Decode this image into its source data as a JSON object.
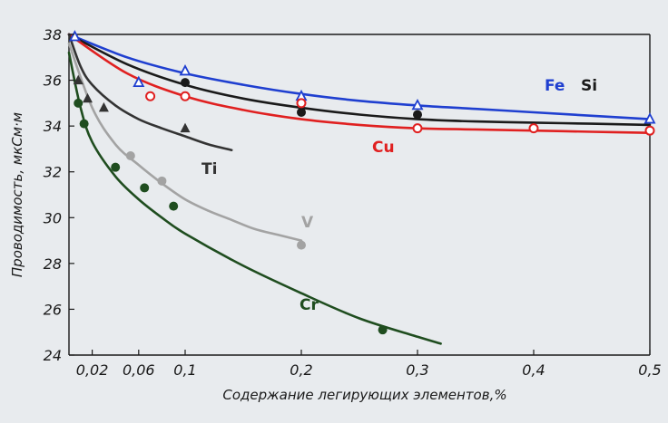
{
  "chart_data": {
    "type": "line",
    "xlabel": "Содержание легирующих элементов,%",
    "ylabel": "Проводимость, мкСм·м",
    "xlim": [
      0,
      0.5
    ],
    "ylim": [
      24,
      38
    ],
    "x_ticks": [
      0.02,
      0.06,
      0.1,
      0.2,
      0.3,
      0.4,
      0.5
    ],
    "x_tick_labels": [
      "0,02",
      "0,06",
      "0,1",
      "0,2",
      "0,3",
      "0,4",
      "0,5"
    ],
    "y_ticks": [
      24,
      26,
      28,
      30,
      32,
      34,
      36,
      38
    ],
    "y_tick_labels": [
      "24",
      "26",
      "28",
      "30",
      "32",
      "34",
      "36",
      "38"
    ],
    "grid": false,
    "legend": "none",
    "series": [
      {
        "name": "Fe",
        "color": "#1f3fd0",
        "marker": "open-triangle",
        "curve": [
          [
            0,
            38
          ],
          [
            0.05,
            37.0
          ],
          [
            0.1,
            36.3
          ],
          [
            0.15,
            35.8
          ],
          [
            0.2,
            35.4
          ],
          [
            0.25,
            35.1
          ],
          [
            0.3,
            34.9
          ],
          [
            0.35,
            34.75
          ],
          [
            0.4,
            34.6
          ],
          [
            0.45,
            34.45
          ],
          [
            0.5,
            34.3
          ]
        ],
        "points": [
          [
            0.005,
            37.9
          ],
          [
            0.06,
            35.9
          ],
          [
            0.1,
            36.4
          ],
          [
            0.2,
            35.3
          ],
          [
            0.3,
            34.9
          ],
          [
            0.5,
            34.3
          ]
        ]
      },
      {
        "name": "Si",
        "color": "#1a1a1a",
        "marker": "filled-circle",
        "curve": [
          [
            0,
            38
          ],
          [
            0.05,
            36.7
          ],
          [
            0.1,
            35.8
          ],
          [
            0.15,
            35.2
          ],
          [
            0.2,
            34.8
          ],
          [
            0.25,
            34.5
          ],
          [
            0.3,
            34.3
          ],
          [
            0.35,
            34.2
          ],
          [
            0.4,
            34.15
          ],
          [
            0.45,
            34.1
          ],
          [
            0.5,
            34.05
          ]
        ],
        "points": [
          [
            0.1,
            35.9
          ],
          [
            0.2,
            34.6
          ],
          [
            0.3,
            34.5
          ]
        ]
      },
      {
        "name": "Cu",
        "color": "#e02020",
        "marker": "open-circle",
        "curve": [
          [
            0,
            38
          ],
          [
            0.05,
            36.3
          ],
          [
            0.1,
            35.3
          ],
          [
            0.15,
            34.7
          ],
          [
            0.2,
            34.3
          ],
          [
            0.25,
            34.05
          ],
          [
            0.3,
            33.9
          ],
          [
            0.35,
            33.85
          ],
          [
            0.4,
            33.8
          ],
          [
            0.45,
            33.75
          ],
          [
            0.5,
            33.7
          ]
        ],
        "points": [
          [
            0.07,
            35.3
          ],
          [
            0.1,
            35.3
          ],
          [
            0.2,
            35.0
          ],
          [
            0.3,
            33.9
          ],
          [
            0.4,
            33.9
          ],
          [
            0.5,
            33.8
          ]
        ]
      },
      {
        "name": "Ti",
        "color": "#333333",
        "marker": "filled-triangle",
        "curve": [
          [
            0,
            38
          ],
          [
            0.01,
            36.6
          ],
          [
            0.02,
            35.8
          ],
          [
            0.04,
            34.9
          ],
          [
            0.06,
            34.3
          ],
          [
            0.08,
            33.9
          ],
          [
            0.1,
            33.55
          ],
          [
            0.12,
            33.2
          ],
          [
            0.14,
            32.95
          ]
        ],
        "points": [
          [
            0.008,
            36.0
          ],
          [
            0.016,
            35.2
          ],
          [
            0.03,
            34.8
          ],
          [
            0.1,
            33.9
          ]
        ]
      },
      {
        "name": "V",
        "color": "#a3a3a3",
        "marker": "filled-circle",
        "curve": [
          [
            0,
            37.6
          ],
          [
            0.02,
            34.8
          ],
          [
            0.04,
            33.2
          ],
          [
            0.06,
            32.3
          ],
          [
            0.08,
            31.5
          ],
          [
            0.1,
            30.8
          ],
          [
            0.12,
            30.3
          ],
          [
            0.14,
            29.9
          ],
          [
            0.16,
            29.5
          ],
          [
            0.18,
            29.25
          ],
          [
            0.2,
            29.0
          ]
        ],
        "points": [
          [
            0.053,
            32.7
          ],
          [
            0.08,
            31.6
          ],
          [
            0.2,
            28.8
          ]
        ]
      },
      {
        "name": "Cr",
        "color": "#1f4d1f",
        "marker": "filled-circle",
        "curve": [
          [
            0,
            37.2
          ],
          [
            0.01,
            34.8
          ],
          [
            0.02,
            33.3
          ],
          [
            0.04,
            31.8
          ],
          [
            0.06,
            30.8
          ],
          [
            0.08,
            30.0
          ],
          [
            0.1,
            29.3
          ],
          [
            0.15,
            27.9
          ],
          [
            0.2,
            26.7
          ],
          [
            0.25,
            25.6
          ],
          [
            0.3,
            24.8
          ],
          [
            0.32,
            24.5
          ]
        ],
        "points": [
          [
            0.008,
            35.0
          ],
          [
            0.013,
            34.1
          ],
          [
            0.04,
            32.2
          ],
          [
            0.065,
            31.3
          ],
          [
            0.09,
            30.5
          ],
          [
            0.27,
            25.1
          ]
        ]
      }
    ]
  }
}
